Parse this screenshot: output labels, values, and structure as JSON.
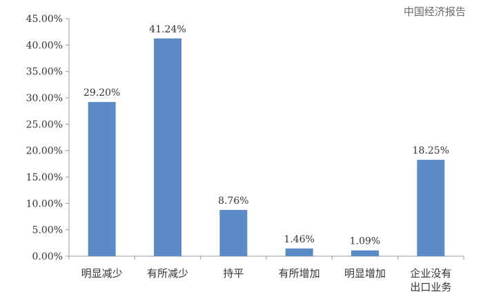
{
  "chart_data": {
    "type": "bar",
    "title": "",
    "xlabel": "",
    "ylabel": "",
    "categories": [
      "明显减少",
      "有所减少",
      "持平",
      "有所增加",
      "明显增加",
      "企业没有出口业务"
    ],
    "category_lines": [
      [
        "明显减少"
      ],
      [
        "有所减少"
      ],
      [
        "持平"
      ],
      [
        "有所增加"
      ],
      [
        "明显增加"
      ],
      [
        "企业没有",
        "出口业务"
      ]
    ],
    "values": [
      29.2,
      41.24,
      8.76,
      1.46,
      1.09,
      18.25
    ],
    "data_labels": [
      "29.20%",
      "41.24%",
      "8.76%",
      "1.46%",
      "1.09%",
      "18.25%"
    ],
    "ylim": [
      0,
      45
    ],
    "yticks": [
      0,
      5,
      10,
      15,
      20,
      25,
      30,
      35,
      40,
      45
    ],
    "ytick_labels": [
      "0.00%",
      "5.00%",
      "10.00%",
      "15.00%",
      "20.00%",
      "25.00%",
      "30.00%",
      "35.00%",
      "40.00%",
      "45.00%"
    ],
    "grid": false,
    "legend": "none",
    "bar_color": "#5b8bc6"
  },
  "watermark": "中国经济报告"
}
